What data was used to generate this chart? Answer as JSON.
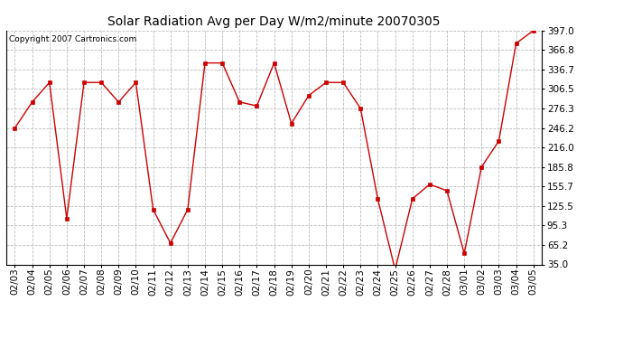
{
  "title": "Solar Radiation Avg per Day W/m2/minute 20070305",
  "copyright": "Copyright 2007 Cartronics.com",
  "dates": [
    "02/03",
    "02/04",
    "02/05",
    "02/06",
    "02/07",
    "02/08",
    "02/09",
    "02/10",
    "02/11",
    "02/12",
    "02/13",
    "02/14",
    "02/15",
    "02/16",
    "02/17",
    "02/18",
    "02/19",
    "02/20",
    "02/21",
    "02/22",
    "02/23",
    "02/24",
    "02/25",
    "02/26",
    "02/27",
    "02/28",
    "03/01",
    "03/02",
    "03/03",
    "03/04",
    "03/05"
  ],
  "values": [
    246.2,
    286.3,
    316.6,
    106.0,
    316.6,
    316.6,
    286.3,
    316.6,
    120.0,
    68.0,
    120.0,
    346.8,
    346.8,
    286.3,
    280.3,
    346.8,
    253.0,
    296.4,
    316.6,
    316.6,
    276.3,
    136.0,
    27.0,
    136.5,
    159.0,
    149.0,
    52.0,
    185.8,
    226.0,
    377.0,
    397.0
  ],
  "line_color": "#cc0000",
  "marker": "s",
  "marker_size": 2.5,
  "bg_color": "#ffffff",
  "grid_color": "#bbbbbb",
  "ylim": [
    35.0,
    397.0
  ],
  "yticks": [
    35.0,
    65.2,
    95.3,
    125.5,
    155.7,
    185.8,
    216.0,
    246.2,
    276.3,
    306.5,
    336.7,
    366.8,
    397.0
  ],
  "title_fontsize": 10,
  "copyright_fontsize": 6.5,
  "tick_fontsize": 7.5
}
